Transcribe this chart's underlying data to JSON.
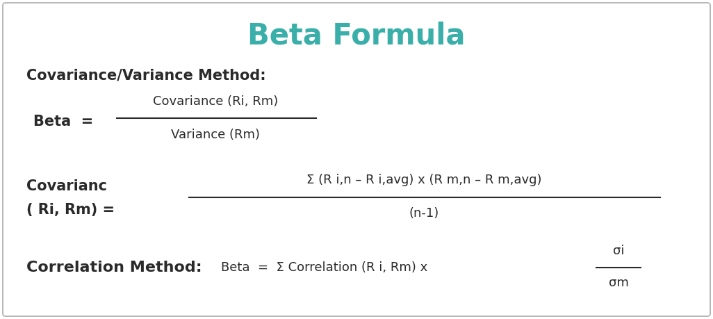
{
  "title": "Beta Formula",
  "title_color": "#3aafa9",
  "title_fontsize": 30,
  "background_color": "#ffffff",
  "border_color": "#aaaaaa",
  "text_color": "#333333",
  "dark_text_color": "#2a2a2a",
  "section1_label": "Covariance/Variance Method:",
  "formula1_num": "Covariance (Ri, Rm)",
  "formula1_den": "Variance (Rm)",
  "section2_left_line1": "Covarianc",
  "section2_left_line2": "( Ri, Rm) =",
  "section2_num": "Σ (R i,n – R i,avg) x (R m,n – R m,avg)",
  "section2_den": "(n-1)",
  "section3_label": "Correlation Method:",
  "section3_frac_num": "σi",
  "section3_frac_den": "σm"
}
